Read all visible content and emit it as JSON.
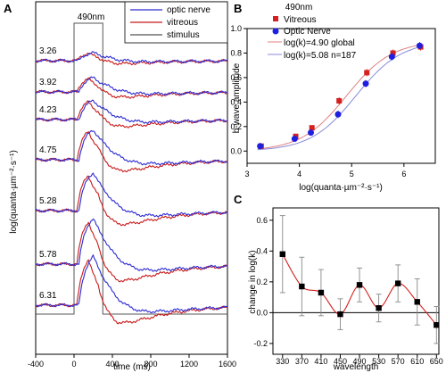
{
  "chart_data": [
    {
      "panel": "A",
      "type": "line",
      "xlabel": "time (ms)",
      "ylabel": "log(quanta·µm⁻²·s⁻¹)",
      "xlim": [
        -400,
        1600
      ],
      "xticks": [
        "-400",
        "0",
        "400",
        "800",
        "1200",
        "1600"
      ],
      "stimulus_label": "490nm",
      "stimulus_window_ms": [
        0,
        300
      ],
      "legend": {
        "placement": "top-right",
        "entries": [
          "optic nerve",
          "vitreous",
          "stimulus"
        ]
      },
      "colors": {
        "optic_nerve": "#2b2bd1",
        "vitreous": "#c81a1a",
        "stimulus": "#555555"
      },
      "intensities": [
        "3.26",
        "3.92",
        "4.23",
        "4.75",
        "5.28",
        "5.78",
        "6.31"
      ]
    },
    {
      "panel": "B",
      "type": "scatter",
      "title": "490nm",
      "xlabel": "log(quanta·µm⁻²·s⁻¹)",
      "ylabel": "b-wave amplitude",
      "xlim": [
        3,
        6.6
      ],
      "ylim": [
        -0.1,
        1.0
      ],
      "xticks": [
        "3",
        "4",
        "5",
        "6"
      ],
      "yticks": [
        "0.0",
        "0.2",
        "0.4",
        "0.6",
        "0.8",
        "1.0"
      ],
      "legend": {
        "placement": "top-left",
        "entries": [
          "Vitreous",
          "Optic Nerve",
          "log(k)=4.90  global",
          "log(k)=5.08  n=187"
        ]
      },
      "series": [
        {
          "name": "Vitreous",
          "color": "#d42020",
          "marker": "square",
          "x": [
            3.26,
            3.92,
            4.23,
            4.75,
            5.28,
            5.78,
            6.31
          ],
          "y": [
            0.04,
            0.12,
            0.19,
            0.41,
            0.64,
            0.8,
            0.85
          ],
          "err": [
            0.01,
            0.02,
            0.02,
            0.03,
            0.03,
            0.03,
            0.03
          ]
        },
        {
          "name": "Optic Nerve",
          "color": "#1f1fe0",
          "marker": "circle",
          "x": [
            3.26,
            3.92,
            4.23,
            4.75,
            5.28,
            5.78,
            6.31
          ],
          "y": [
            0.04,
            0.1,
            0.15,
            0.3,
            0.55,
            0.77,
            0.86
          ],
          "err": [
            0.01,
            0.02,
            0.02,
            0.03,
            0.03,
            0.03,
            0.03
          ]
        }
      ],
      "fits": [
        {
          "name": "log(k)=4.90  global",
          "logk": 4.9,
          "color": "#e08080"
        },
        {
          "name": "log(k)=5.08  n=187",
          "logk": 5.08,
          "color": "#8a8ad8"
        }
      ]
    },
    {
      "panel": "C",
      "type": "scatter",
      "xlabel": "wavelength",
      "ylabel": "change in log(k)",
      "xlim": [
        310,
        655
      ],
      "ylim": [
        -0.27,
        0.68
      ],
      "categories": [
        "330",
        "370",
        "410",
        "450",
        "490",
        "530",
        "570",
        "610",
        "650"
      ],
      "yticks": [
        "-0.2",
        "0.0",
        "0.2",
        "0.4",
        "0.6"
      ],
      "series": [
        {
          "name": "",
          "color": "#000000",
          "x": [
            330,
            370,
            410,
            450,
            490,
            530,
            570,
            610,
            650
          ],
          "y": [
            0.38,
            0.17,
            0.13,
            -0.01,
            0.18,
            0.03,
            0.19,
            0.07,
            -0.08
          ],
          "err": [
            0.25,
            0.19,
            0.15,
            0.1,
            0.11,
            0.09,
            0.12,
            0.15,
            0.12
          ]
        }
      ],
      "fit_color": "#d42020"
    }
  ]
}
